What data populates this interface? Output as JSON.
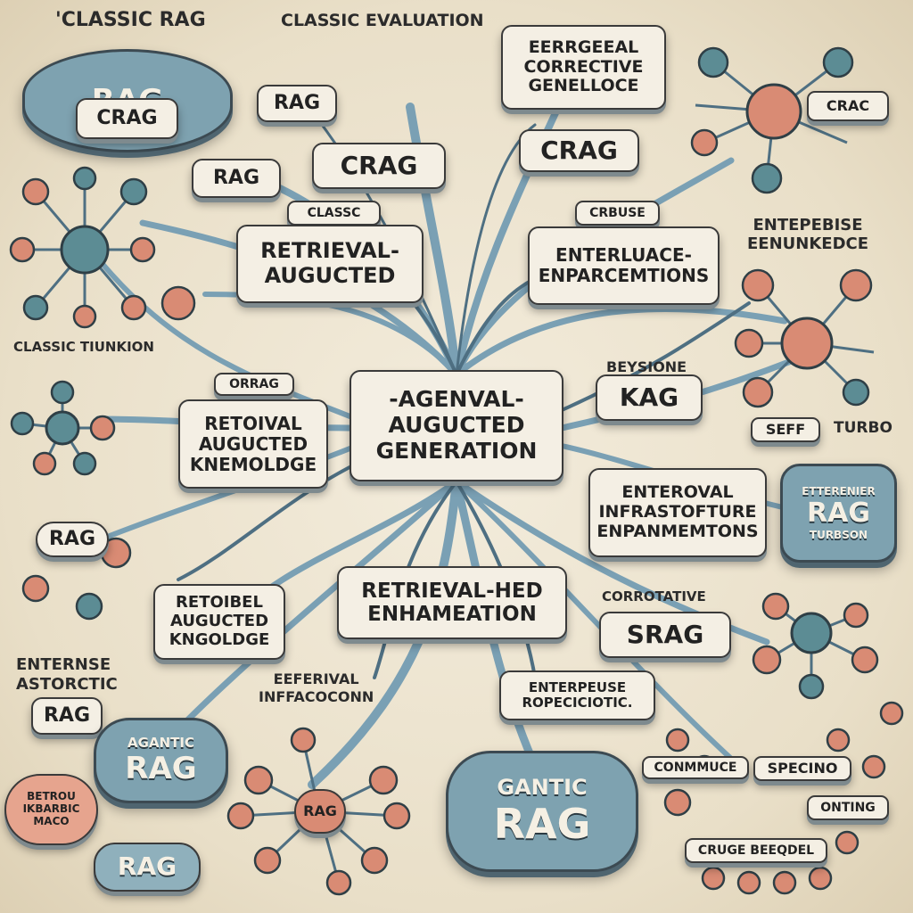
{
  "colors": {
    "wire": "#7aa0b4",
    "wire_dark": "#4e6f82",
    "cloud": "#7ea2b0",
    "node_red": "#d98b74",
    "node_teal": "#5c8c94",
    "card": "#f4efe4"
  },
  "labels": {
    "classic_rag": "'CLASSIC RAG",
    "classic_eval": "CLASSIC EVALUATION",
    "top_center_box": "RAG",
    "crag_top": "CRAG",
    "rag_left": "RAG",
    "corrective_box": "EERRGEEAL\nCORRECTIVE\nGENELLOCE",
    "crag_right_box": "CRAG",
    "crag_node": "CRAG",
    "classc": "CLASSC",
    "crbuse": "CRBUSE",
    "retrieval_augucted": "RETRIEVAL-\nAUGUCTED",
    "enterluace": "ENTERLUACE-\nENPARCEMTIONS",
    "enterpebise": "ENTEPEBISE\nEENUNKEDCE",
    "classic_tiunkion": "CLASSIC TIUNKION",
    "center": "-AGENVAL-\nAUGUCTED\nGENERATION",
    "orrag": "ORRAG",
    "retoival": "RETOIVAL\nAUGUCTED\nKNEMOLDGE",
    "beysione": "BEYSIONE",
    "kag": "KAG",
    "seff": "SEFF",
    "turbo": "TURBO",
    "enteroval": "ENTEROVAL\nINFRASTOFTURE\nENPANMEMTONS",
    "rag_turbo_cloud": "RAG",
    "enterenier": "ETTERENIER",
    "turbo_small": "TURBSON",
    "rag_left_mid": "RAG",
    "retoibel": "RETOIBEL\nAUGUCTED\nKNGOLDGE",
    "retrieval_hed": "RETRIEVAL-HED\nENHAMEATION",
    "corrotative": "CORROTATIVE",
    "srag": "SRAG",
    "enternse": "ENTERNSE\nASTORCTIC",
    "rag_bottom_left": "RAG",
    "eeferival": "EEFERIVAL\nINFFACOCONN",
    "enterpeuse": "ENTERPEUSE\nROPECICIOTIC.",
    "agentic_cloud": "AGANTIC",
    "agentic_cloud_rag": "RAG",
    "betrou": "BETROU\nIKBARBIC\nMACO",
    "rag_bottom": "RAG",
    "rag_hub": "RAG",
    "gantic_cloud": "GANTIC",
    "gantic_rag": "RAG",
    "specino": "SPECINO",
    "conmmuce": "CONMMUCE",
    "crug_beeqdel": "CRUGE BEEQDEL",
    "onting": "ONTING",
    "crac": "CRAC"
  }
}
